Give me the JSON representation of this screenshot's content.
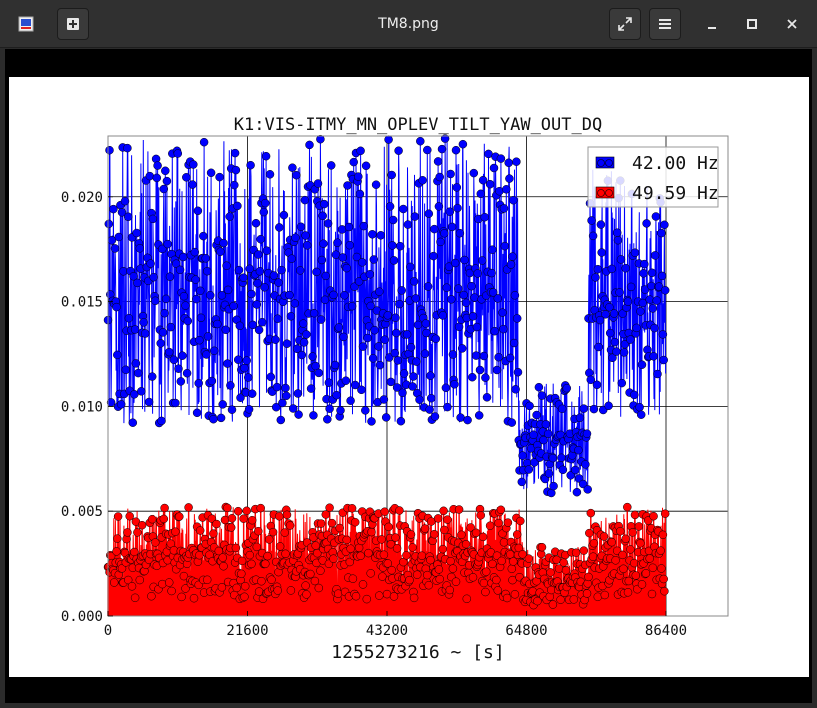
{
  "window": {
    "title": "TM8.png",
    "icons": {
      "app": "image-viewer-app-icon",
      "new_tab": "new-tab-plus-icon",
      "fullscreen": "fullscreen-expand-icon",
      "menu": "hamburger-menu-icon",
      "minimize": "minimize-icon",
      "maximize": "maximize-icon",
      "close": "close-icon"
    }
  },
  "chart_data": {
    "type": "line",
    "title": "K1:VIS-ITMY_MN_OPLEV_TILT_YAW_OUT_DQ",
    "xlabel": "1255273216 ~ [s]",
    "ylabel": "",
    "xlim": [
      0,
      96000
    ],
    "ylim": [
      0.0,
      0.0229
    ],
    "xticks": [
      0,
      21600,
      43200,
      64800,
      86400
    ],
    "xtick_labels": [
      "0",
      "21600",
      "43200",
      "64800",
      "86400"
    ],
    "yticks": [
      0.0,
      0.005,
      0.01,
      0.015,
      0.02
    ],
    "ytick_labels": [
      "0.000",
      "0.005",
      "0.010",
      "0.015",
      "0.020"
    ],
    "grid": true,
    "legend_position": "top-right",
    "sample_interval_s": 60,
    "series": [
      {
        "name": "42.00 Hz",
        "color": "#0000ff",
        "marker": "circle",
        "segments": [
          {
            "x_start": 0,
            "x_end": 63600,
            "mean": 0.0153,
            "spread_low": 0.0092,
            "spread_high": 0.0228
          },
          {
            "x_start": 63600,
            "x_end": 74400,
            "mean": 0.0083,
            "spread_low": 0.0058,
            "spread_high": 0.0111
          },
          {
            "x_start": 74400,
            "x_end": 86400,
            "mean": 0.0148,
            "spread_low": 0.0095,
            "spread_high": 0.0215
          }
        ]
      },
      {
        "name": "49.59 Hz",
        "color": "#ff0000",
        "marker": "circle",
        "segments": [
          {
            "x_start": 0,
            "x_end": 64200,
            "mean": 0.0029,
            "spread_low": 0.0008,
            "spread_high": 0.0052
          },
          {
            "x_start": 64200,
            "x_end": 74400,
            "mean": 0.0016,
            "spread_low": 0.0005,
            "spread_high": 0.0033
          },
          {
            "x_start": 74400,
            "x_end": 86400,
            "mean": 0.0028,
            "spread_low": 0.0008,
            "spread_high": 0.0052
          }
        ]
      }
    ]
  }
}
